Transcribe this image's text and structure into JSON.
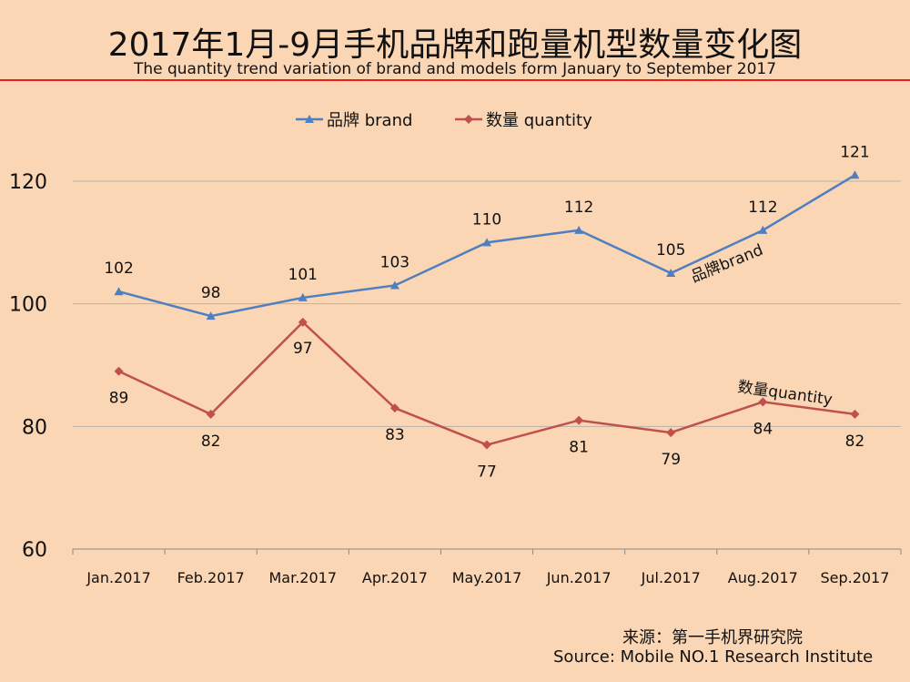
{
  "header": {
    "title": "2017年1月-9月手机品牌和跑量机型数量变化图",
    "subtitle": "The quantity trend variation of brand and models form January to September 2017"
  },
  "source": {
    "cn": "来源：第一手机界研究院",
    "en": "Source: Mobile NO.1 Research Institute"
  },
  "colors": {
    "background": "#fad6b4",
    "brand": "#4f7fc0",
    "quantity": "#c0504d",
    "accent_line": "#e8201a"
  },
  "chart_data": {
    "type": "line",
    "categories": [
      "Jan.2017",
      "Feb.2017",
      "Mar.2017",
      "Apr.2017",
      "May.2017",
      "Jun.2017",
      "Jul.2017",
      "Aug.2017",
      "Sep.2017"
    ],
    "series": [
      {
        "name": "品牌 brand",
        "inline_label": "品牌brand",
        "marker": "triangle",
        "values": [
          102,
          98,
          101,
          103,
          110,
          112,
          105,
          112,
          121
        ]
      },
      {
        "name": "数量 quantity",
        "inline_label": "数量quantity",
        "marker": "diamond",
        "values": [
          89,
          82,
          97,
          83,
          77,
          81,
          79,
          84,
          82
        ]
      }
    ],
    "ylim": [
      60,
      120
    ],
    "yticks": [
      60,
      80,
      100,
      120
    ],
    "grid": true,
    "legend": "top"
  }
}
